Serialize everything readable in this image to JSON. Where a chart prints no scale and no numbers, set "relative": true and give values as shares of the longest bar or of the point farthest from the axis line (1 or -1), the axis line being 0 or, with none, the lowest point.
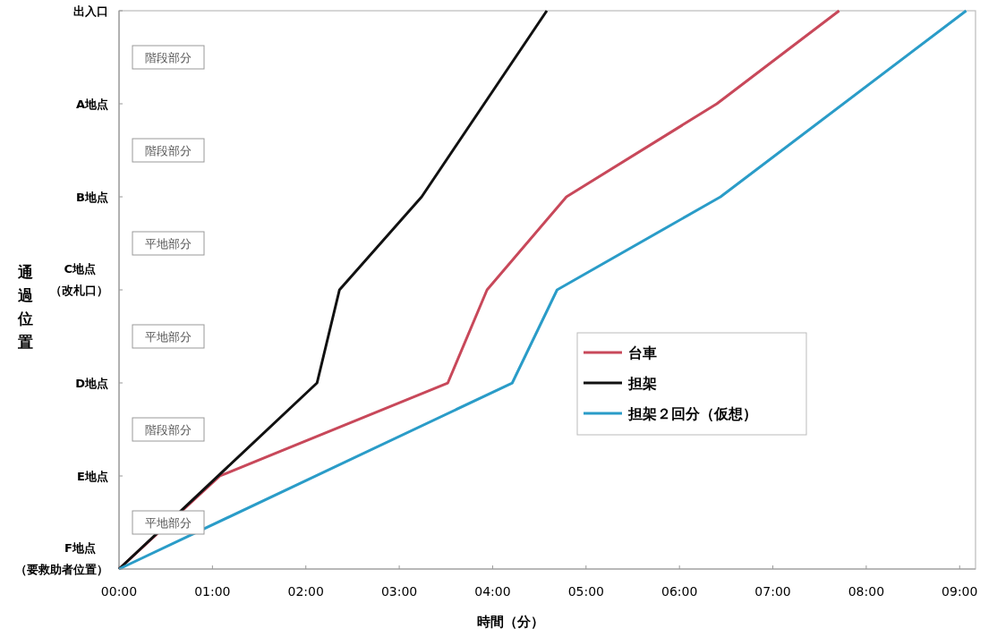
{
  "chart_data": {
    "type": "line",
    "relative": true,
    "xlabel": "時間（分）",
    "ylabel": "通過位置",
    "xlim": [
      0,
      9.17
    ],
    "xticks": [
      {
        "value": 0,
        "label": "00:00"
      },
      {
        "value": 1,
        "label": "01:00"
      },
      {
        "value": 2,
        "label": "02:00"
      },
      {
        "value": 3,
        "label": "03:00"
      },
      {
        "value": 4,
        "label": "04:00"
      },
      {
        "value": 5,
        "label": "05:00"
      },
      {
        "value": 6,
        "label": "06:00"
      },
      {
        "value": 7,
        "label": "07:00"
      },
      {
        "value": 8,
        "label": "08:00"
      },
      {
        "value": 9,
        "label": "09:00"
      }
    ],
    "series": [
      {
        "name": "台車",
        "color": "#c8485a",
        "x": [
          0,
          1.08,
          3.52,
          3.94,
          4.79,
          6.4,
          7.71
        ],
        "values": [
          0,
          0.1667,
          0.3333,
          0.5,
          0.6667,
          0.8333,
          1
        ]
      },
      {
        "name": "担架",
        "color": "#111111",
        "x": [
          0,
          2.12,
          2.36,
          3.24,
          4.58
        ],
        "values": [
          0,
          0.3333,
          0.5,
          0.6667,
          1
        ]
      },
      {
        "name": "担架２回分（仮想）",
        "color": "#2a9cc8",
        "x": [
          0,
          4.21,
          4.69,
          6.44,
          9.07
        ],
        "values": [
          0,
          0.3333,
          0.5,
          0.6667,
          1
        ]
      }
    ],
    "annotations": [
      "出入口",
      "階段部分",
      "A地点",
      "階段部分",
      "B地点",
      "平地部分",
      "C地点（改札口）",
      "平地部分",
      "D地点",
      "階段部分",
      "E地点",
      "平地部分",
      "F地点（要救助者位置）"
    ],
    "legend": "right"
  }
}
